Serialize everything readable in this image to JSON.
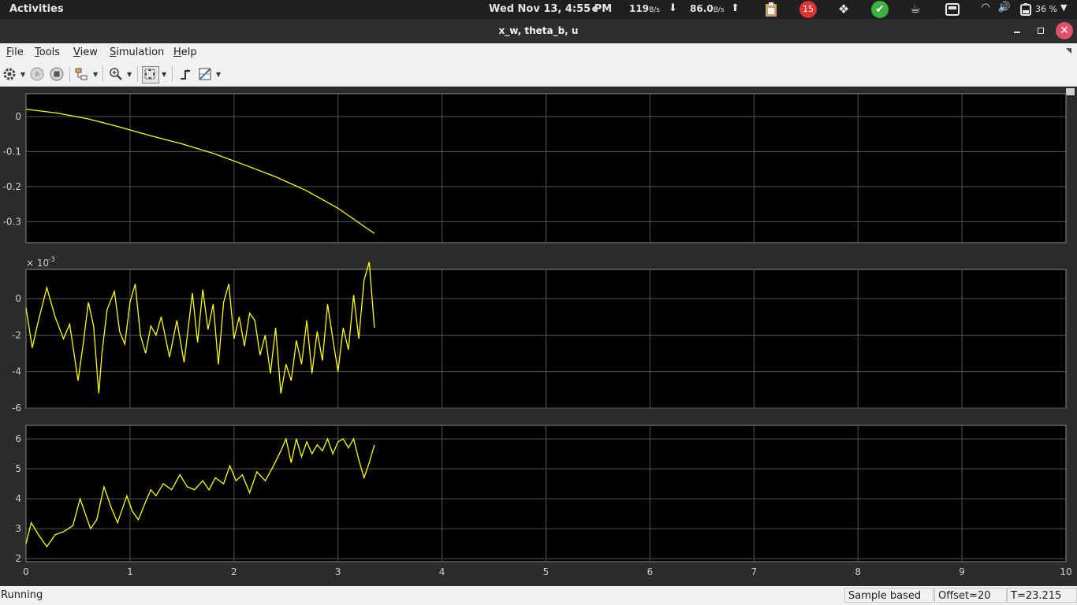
{
  "topbar": {
    "activities": "Activities",
    "clock": "Wed Nov 13,  4:55 PM",
    "net_down": "119",
    "net_down_unit": "B/s",
    "net_up": "86.0",
    "net_up_unit": "B/s",
    "notification_count": "15",
    "battery": "36 %"
  },
  "window": {
    "title": "x_w, theta_b, u"
  },
  "menu": {
    "file": "File",
    "tools": "Tools",
    "view": "View",
    "simulation": "Simulation",
    "help": "Help"
  },
  "statusbar": {
    "status": "Running",
    "mode": "Sample based",
    "offset": "Offset=20",
    "time": "T=23.215"
  },
  "colors": {
    "trace": "#ffff00",
    "axes_background": "#000000",
    "grid": "#555555",
    "figure_background": "#2b2b2b",
    "tick_text": "#d0d0d0"
  },
  "chart_data": [
    {
      "type": "line",
      "title": "",
      "xlim": [
        0,
        10
      ],
      "ylim": [
        -0.36,
        0.065
      ],
      "yticks": [
        0,
        -0.1,
        -0.2,
        -0.3
      ],
      "ytick_labels": [
        "0",
        "-0.1",
        "-0.2",
        "-0.3"
      ],
      "exponent_label": "",
      "grid": true,
      "series": [
        {
          "x": [
            0,
            0.3,
            0.6,
            0.9,
            1.2,
            1.5,
            1.8,
            2.1,
            2.4,
            2.7,
            3.0,
            3.35
          ],
          "y": [
            0.021,
            0.01,
            -0.007,
            -0.03,
            -0.055,
            -0.078,
            -0.105,
            -0.138,
            -0.172,
            -0.212,
            -0.262,
            -0.334
          ]
        }
      ]
    },
    {
      "type": "line",
      "title": "",
      "xlim": [
        0,
        10
      ],
      "ylim": [
        -6,
        1.6
      ],
      "yticks": [
        0,
        -2,
        -4,
        -6
      ],
      "ytick_labels": [
        "0",
        "-2",
        "-4",
        "-6"
      ],
      "exponent_label": "× 10",
      "exponent_power": "-3",
      "grid": true,
      "series": [
        {
          "x": [
            0,
            0.06,
            0.12,
            0.2,
            0.28,
            0.36,
            0.42,
            0.5,
            0.55,
            0.6,
            0.65,
            0.7,
            0.73,
            0.78,
            0.85,
            0.9,
            0.95,
            1.0,
            1.05,
            1.1,
            1.15,
            1.2,
            1.25,
            1.3,
            1.38,
            1.45,
            1.52,
            1.6,
            1.65,
            1.7,
            1.75,
            1.8,
            1.85,
            1.9,
            1.95,
            2.0,
            2.05,
            2.1,
            2.15,
            2.2,
            2.25,
            2.3,
            2.35,
            2.4,
            2.45,
            2.5,
            2.55,
            2.6,
            2.65,
            2.7,
            2.75,
            2.8,
            2.85,
            2.9,
            2.95,
            3.0,
            3.05,
            3.1,
            3.15,
            3.2,
            3.25,
            3.3,
            3.35
          ],
          "y": [
            -0.5,
            -2.7,
            -1.2,
            0.6,
            -1.0,
            -2.2,
            -1.4,
            -4.5,
            -2.5,
            -0.2,
            -1.5,
            -5.2,
            -3.0,
            -0.6,
            0.4,
            -1.8,
            -2.5,
            -0.2,
            0.8,
            -2.0,
            -3.0,
            -1.5,
            -2.0,
            -1.0,
            -3.2,
            -1.2,
            -3.5,
            0.3,
            -2.4,
            0.5,
            -1.7,
            -0.3,
            -3.6,
            -0.2,
            0.8,
            -2.2,
            -1.0,
            -2.6,
            -0.8,
            -1.2,
            -3.1,
            -2.0,
            -4.1,
            -1.6,
            -5.2,
            -3.6,
            -4.5,
            -2.3,
            -3.6,
            -1.2,
            -4.1,
            -1.8,
            -3.4,
            -0.3,
            -2.2,
            -4.0,
            -1.6,
            -2.8,
            0.2,
            -2.2,
            1.0,
            2.0,
            -1.6
          ]
        }
      ]
    },
    {
      "type": "line",
      "title": "",
      "xlim": [
        0,
        10
      ],
      "ylim": [
        1.9,
        6.45
      ],
      "yticks": [
        6,
        5,
        4,
        3,
        2
      ],
      "ytick_labels": [
        "6",
        "5",
        "4",
        "3",
        "2"
      ],
      "exponent_label": "",
      "grid": true,
      "xticks": [
        0,
        1,
        2,
        3,
        4,
        5,
        6,
        7,
        8,
        9,
        10
      ],
      "xtick_labels": [
        "0",
        "1",
        "2",
        "3",
        "4",
        "5",
        "6",
        "7",
        "8",
        "9",
        "10"
      ],
      "series": [
        {
          "x": [
            0,
            0.05,
            0.12,
            0.2,
            0.28,
            0.36,
            0.45,
            0.52,
            0.58,
            0.62,
            0.68,
            0.75,
            0.82,
            0.88,
            0.92,
            0.97,
            1.02,
            1.08,
            1.15,
            1.2,
            1.25,
            1.32,
            1.4,
            1.48,
            1.55,
            1.62,
            1.7,
            1.76,
            1.82,
            1.9,
            1.96,
            2.02,
            2.08,
            2.15,
            2.22,
            2.3,
            2.38,
            2.45,
            2.5,
            2.55,
            2.6,
            2.65,
            2.7,
            2.75,
            2.8,
            2.85,
            2.9,
            2.95,
            3.0,
            3.05,
            3.1,
            3.15,
            3.2,
            3.25,
            3.3,
            3.35
          ],
          "y": [
            2.5,
            3.2,
            2.8,
            2.4,
            2.8,
            2.9,
            3.1,
            4.0,
            3.4,
            3.0,
            3.3,
            4.4,
            3.7,
            3.2,
            3.6,
            4.1,
            3.6,
            3.3,
            3.9,
            4.3,
            4.1,
            4.5,
            4.3,
            4.8,
            4.4,
            4.3,
            4.6,
            4.3,
            4.7,
            4.5,
            5.1,
            4.6,
            4.8,
            4.2,
            4.9,
            4.6,
            5.1,
            5.6,
            6.0,
            5.2,
            6.0,
            5.4,
            5.9,
            5.5,
            5.8,
            5.6,
            6.0,
            5.5,
            5.9,
            6.0,
            5.7,
            6.0,
            5.3,
            4.7,
            5.2,
            5.8
          ]
        }
      ]
    }
  ]
}
